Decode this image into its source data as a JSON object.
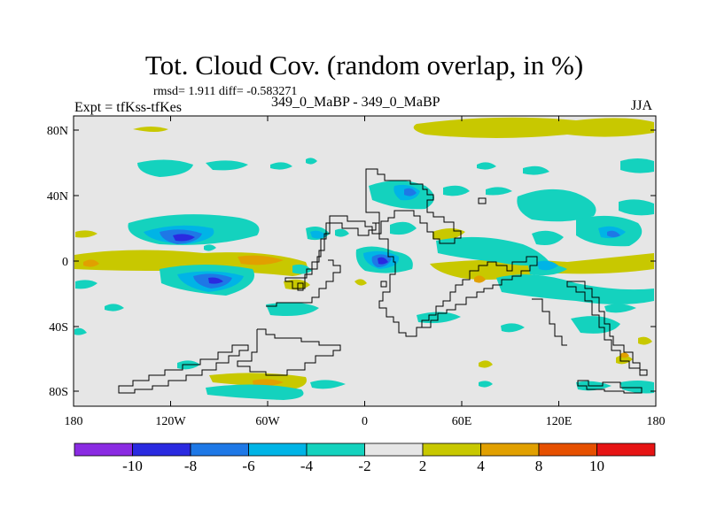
{
  "header": {
    "title": "Tot. Cloud Cov. (random overlap, in %)",
    "stats": "rmsd= 1.911 diff= -0.583271",
    "experiment": "Expt = tfKss-tfKes",
    "period": "349_0_MaBP - 349_0_MaBP",
    "season": "JJA"
  },
  "axes": {
    "x_ticks": [
      "180",
      "120W",
      "60W",
      "0",
      "60E",
      "120E",
      "180"
    ],
    "y_ticks": [
      "80N",
      "40N",
      "0",
      "40S",
      "80S"
    ]
  },
  "colorbar": {
    "labels": [
      "-10",
      "-8",
      "-6",
      "-4",
      "-2",
      "2",
      "4",
      "8",
      "10"
    ],
    "colors": [
      "#8a2be2",
      "#2a2ae0",
      "#1e78e6",
      "#00b4e6",
      "#14d2be",
      "#e6e6e6",
      "#c8c800",
      "#e1a000",
      "#e65000",
      "#e61414"
    ]
  },
  "map": {
    "background_color": "#e6e6e6",
    "palette": {
      "cyan": "#14d2be",
      "lightblue": "#00b4e6",
      "midblue": "#1e78e6",
      "darkblue": "#2a2ae0",
      "olive": "#c8c800",
      "orange": "#e1a000",
      "darkorange": "#e65000",
      "red": "#e61414"
    }
  }
}
